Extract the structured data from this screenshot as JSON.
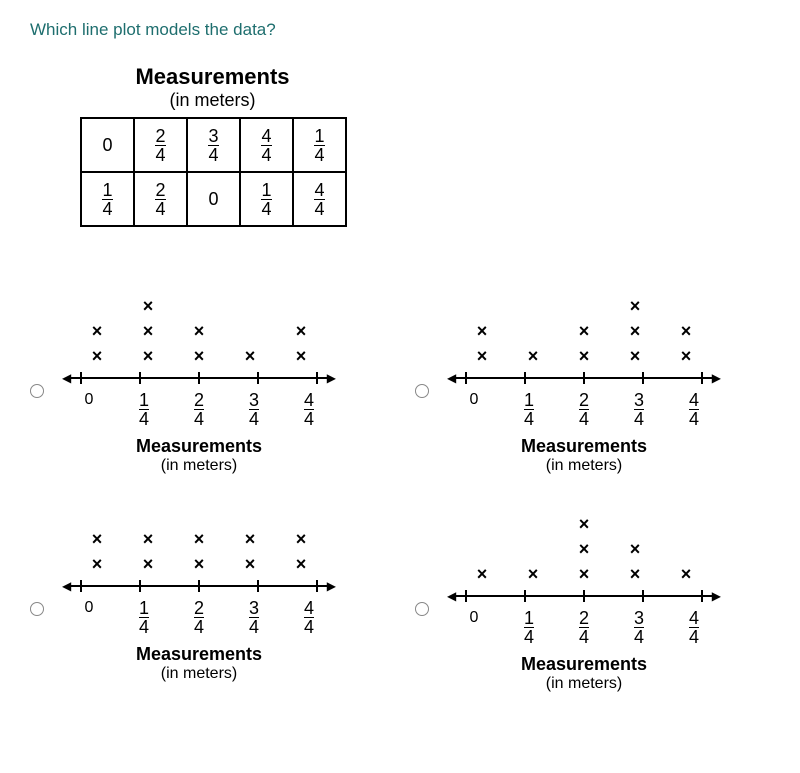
{
  "question": "Which line plot models the data?",
  "table": {
    "title": "Measurements",
    "subtitle": "(in meters)",
    "rows": [
      [
        {
          "t": "int",
          "v": "0"
        },
        {
          "t": "frac",
          "n": "2",
          "d": "4"
        },
        {
          "t": "frac",
          "n": "3",
          "d": "4"
        },
        {
          "t": "frac",
          "n": "4",
          "d": "4"
        },
        {
          "t": "frac",
          "n": "1",
          "d": "4"
        }
      ],
      [
        {
          "t": "frac",
          "n": "1",
          "d": "4"
        },
        {
          "t": "frac",
          "n": "2",
          "d": "4"
        },
        {
          "t": "int",
          "v": "0"
        },
        {
          "t": "frac",
          "n": "1",
          "d": "4"
        },
        {
          "t": "frac",
          "n": "4",
          "d": "4"
        }
      ]
    ]
  },
  "shared": {
    "x_mark": "×",
    "axis_arrow_left": "◀",
    "axis_arrow_right": "▶",
    "plot_title": "Measurements",
    "plot_subtitle": "(in meters)",
    "tick_labels": [
      {
        "t": "int",
        "v": "0"
      },
      {
        "t": "frac",
        "n": "1",
        "d": "4"
      },
      {
        "t": "frac",
        "n": "2",
        "d": "4"
      },
      {
        "t": "frac",
        "n": "3",
        "d": "4"
      },
      {
        "t": "frac",
        "n": "4",
        "d": "4"
      }
    ]
  },
  "options": [
    {
      "id": "A",
      "counts": [
        2,
        3,
        2,
        1,
        2
      ],
      "stack_height": 70
    },
    {
      "id": "B",
      "counts": [
        2,
        1,
        2,
        3,
        2
      ],
      "stack_height": 70
    },
    {
      "id": "C",
      "counts": [
        2,
        2,
        2,
        2,
        2
      ],
      "stack_height": 50
    },
    {
      "id": "D",
      "counts": [
        1,
        1,
        3,
        2,
        1
      ],
      "stack_height": 70
    }
  ],
  "colors": {
    "question": "#1e6e6e",
    "text": "#000000",
    "radio_border": "#888888",
    "bg": "#ffffff"
  }
}
